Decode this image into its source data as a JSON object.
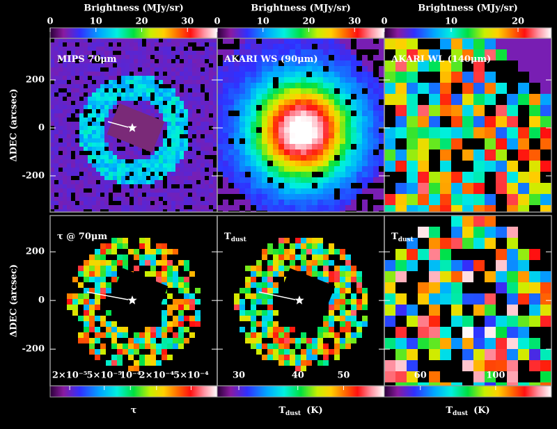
{
  "colorbars_top": [
    {
      "label": "Brightness (MJy/sr)",
      "lim": [
        0,
        36.5
      ],
      "ticks": [
        0,
        10,
        20,
        30
      ]
    },
    {
      "label": "Brightness (MJy/sr)",
      "lim": [
        0,
        36.5
      ],
      "ticks": [
        0,
        10,
        20,
        30
      ]
    },
    {
      "label": "Brightness (MJy/sr)",
      "lim": [
        0,
        25
      ],
      "ticks": [
        0,
        10,
        20
      ]
    }
  ],
  "panels": [
    {
      "label": "MIPS 70μm"
    },
    {
      "label": "AKARI WS (90μm)"
    },
    {
      "label": "AKARI WL (140μm)"
    },
    {
      "label": "τ @ 70μm"
    },
    {
      "label": "T",
      "label_sub": "dust"
    },
    {
      "label": "T",
      "label_sub": "dust"
    }
  ],
  "y_axes": [
    {
      "label": "ΔDEC (arcsec)",
      "lim": [
        -351,
        374
      ],
      "ticks": [
        -200,
        0,
        200
      ]
    },
    {
      "label": "ΔDEC (arcsec)",
      "lim": [
        -351,
        349
      ],
      "ticks": [
        -200,
        0,
        200
      ]
    }
  ],
  "colorbars_bottom": [
    {
      "label": "τ",
      "log": true,
      "lim": [
        1.19e-05,
        0.001
      ],
      "ticks": [
        {
          "value": 2e-05,
          "label": "2×10⁻⁵"
        },
        {
          "value": 5e-05,
          "label": "5×10⁻⁵"
        },
        {
          "value": 0.0001,
          "label": "10⁻⁴"
        },
        {
          "value": 0.0002,
          "label": "2×10⁻⁴"
        },
        {
          "value": 0.0005,
          "label": "5×10⁻⁴"
        }
      ]
    },
    {
      "label": "T",
      "label_sub": "dust",
      "label_suffix": "(K)",
      "log": true,
      "lim": [
        27,
        61
      ],
      "ticks": [
        30,
        40,
        50
      ]
    },
    {
      "label": "T",
      "label_sub": "dust",
      "label_suffix": "(K)",
      "log": true,
      "lim": [
        47,
        146
      ],
      "ticks": [
        60,
        100
      ]
    }
  ]
}
